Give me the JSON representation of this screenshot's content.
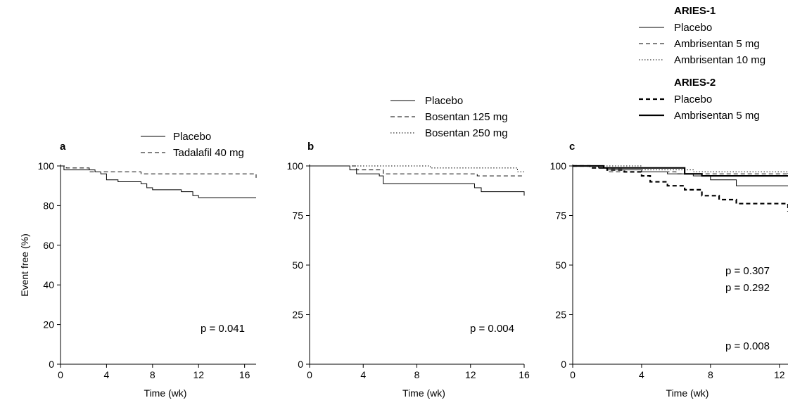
{
  "chart_data": [
    {
      "type": "line",
      "panel_label": "a",
      "xlabel": "Time (wk)",
      "ylabel": "Event free (%)",
      "xlim": [
        0,
        17
      ],
      "ylim": [
        0,
        100
      ],
      "xticks": [
        "0",
        "4",
        "8",
        "12",
        "16"
      ],
      "yticks": [
        "0",
        "20",
        "40",
        "60",
        "80",
        "100"
      ],
      "legend_position": "top-right",
      "annotation": "p = 0.041",
      "series": [
        {
          "name": "Placebo",
          "style": "solid",
          "width": 1,
          "x": [
            0,
            0.3,
            2,
            3,
            3.5,
            4,
            5,
            7,
            7.5,
            8,
            10.5,
            11.5,
            12,
            17
          ],
          "y": [
            100,
            98,
            98,
            97,
            96,
            93,
            92,
            91,
            89,
            88,
            87,
            85,
            84,
            84
          ]
        },
        {
          "name": "Tadalafil 40 mg",
          "style": "dashed",
          "width": 1,
          "x": [
            0,
            0.5,
            2,
            2.5,
            7,
            16.5,
            17
          ],
          "y": [
            100,
            99,
            99,
            97,
            96,
            96,
            94
          ]
        }
      ]
    },
    {
      "type": "line",
      "panel_label": "b",
      "xlabel": "Time (wk)",
      "ylabel": "",
      "xlim": [
        0,
        16
      ],
      "ylim": [
        0,
        100
      ],
      "xticks": [
        "0",
        "4",
        "8",
        "12",
        "16"
      ],
      "yticks": [
        "0",
        "25",
        "50",
        "75",
        "100"
      ],
      "legend_position": "top-right",
      "annotation": "p = 0.004",
      "series": [
        {
          "name": "Placebo",
          "style": "solid",
          "width": 1,
          "x": [
            0,
            2.6,
            3,
            3.5,
            5.2,
            5.5,
            11.7,
            12.3,
            12.8,
            15.8,
            16
          ],
          "y": [
            100,
            100,
            98,
            96,
            95,
            91,
            91,
            89,
            87,
            87,
            85
          ]
        },
        {
          "name": "Bosentan 125 mg",
          "style": "dashed",
          "width": 1,
          "x": [
            0,
            2.6,
            3.5,
            5.5,
            12.5,
            16
          ],
          "y": [
            100,
            100,
            98,
            96,
            95,
            95
          ]
        },
        {
          "name": "Bosentan 250 mg",
          "style": "dotted",
          "width": 1,
          "x": [
            0,
            3,
            9,
            15,
            15.5,
            16
          ],
          "y": [
            100,
            100,
            99,
            99,
            97,
            97
          ]
        }
      ]
    },
    {
      "type": "line",
      "panel_label": "c",
      "xlabel": "Time (wk)",
      "ylabel": "",
      "xlim": [
        0,
        12.5
      ],
      "ylim": [
        0,
        100
      ],
      "xticks": [
        "0",
        "4",
        "8",
        "12"
      ],
      "yticks": [
        "0",
        "25",
        "50",
        "75",
        "100"
      ],
      "legend_position": "top-right",
      "annotations": [
        "p = 0.307",
        "p = 0.292",
        "p = 0.008"
      ],
      "legend_groups": [
        "ARIES-1",
        "ARIES-2"
      ],
      "series": [
        {
          "group": "ARIES-1",
          "name": "Placebo",
          "style": "solid",
          "width": 1,
          "x": [
            0,
            1.5,
            2,
            4,
            5.5,
            7,
            8,
            9.5,
            12.5
          ],
          "y": [
            100,
            99,
            98,
            97,
            96,
            95,
            93,
            90,
            90
          ]
        },
        {
          "group": "ARIES-1",
          "name": "Ambrisentan 5 mg",
          "style": "dashed",
          "width": 1,
          "x": [
            0,
            1,
            2,
            6,
            7,
            12.5
          ],
          "y": [
            100,
            99,
            97,
            96,
            96,
            96
          ]
        },
        {
          "group": "ARIES-1",
          "name": "Ambrisentan 10 mg",
          "style": "dotted",
          "width": 1,
          "x": [
            0,
            4,
            7,
            12.5
          ],
          "y": [
            100,
            98,
            97,
            96
          ]
        },
        {
          "group": "ARIES-2",
          "name": "Placebo",
          "style": "dashed",
          "width": 2.2,
          "x": [
            0,
            1,
            2,
            3,
            4,
            4.5,
            5.5,
            6.5,
            7.5,
            8.5,
            9.5,
            12.3,
            12.5
          ],
          "y": [
            100,
            99,
            98,
            97,
            95,
            92,
            90,
            88,
            85,
            83,
            81,
            81,
            77
          ]
        },
        {
          "group": "ARIES-2",
          "name": "Ambrisentan 5 mg",
          "style": "solid",
          "width": 2.2,
          "x": [
            0,
            1.8,
            6.2,
            6.5,
            7.5,
            12.5
          ],
          "y": [
            100,
            99,
            99,
            96,
            95,
            95
          ]
        }
      ]
    }
  ]
}
